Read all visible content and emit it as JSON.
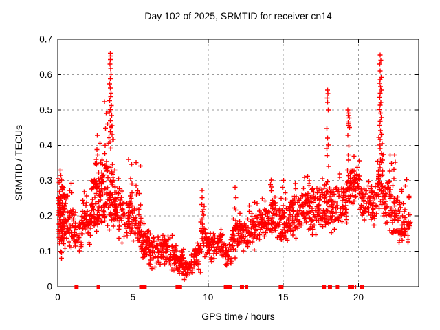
{
  "chart_data": {
    "type": "scatter",
    "title": "Day 102 of 2025, SRMTID for receiver cn14",
    "xlabel": "GPS time / hours",
    "ylabel": "SRMTID / TECUs",
    "xlim": [
      0,
      24
    ],
    "ylim": [
      0,
      0.7
    ],
    "grid": true,
    "legend_position": "none",
    "text_color": "#000000",
    "grid_color": "#9a9a9a",
    "axis_color": "#000000",
    "marker": {
      "shape": "plus",
      "color": "#ff0000",
      "size": 7,
      "stroke_width": 1.4
    },
    "zero_marker": {
      "shape": "filled-square",
      "color": "#ff0000",
      "height": 6
    },
    "x_ticks": [
      {
        "value": 0,
        "label": "0"
      },
      {
        "value": 5,
        "label": "5"
      },
      {
        "value": 10,
        "label": "10"
      },
      {
        "value": 15,
        "label": "15"
      },
      {
        "value": 20,
        "label": "20"
      }
    ],
    "y_ticks": [
      {
        "value": 0.0,
        "label": "0"
      },
      {
        "value": 0.1,
        "label": "0.1"
      },
      {
        "value": 0.2,
        "label": "0.2"
      },
      {
        "value": 0.3,
        "label": "0.3"
      },
      {
        "value": 0.4,
        "label": "0.4"
      },
      {
        "value": 0.5,
        "label": "0.5"
      },
      {
        "value": 0.6,
        "label": "0.6"
      },
      {
        "value": 0.7,
        "label": "0.7"
      }
    ],
    "feature_points": [
      [
        3.5,
        0.66
      ],
      [
        3.53,
        0.652
      ],
      [
        3.49,
        0.643
      ],
      [
        3.47,
        0.63
      ],
      [
        3.51,
        0.616
      ],
      [
        3.54,
        0.601
      ],
      [
        3.5,
        0.588
      ],
      [
        3.46,
        0.574
      ],
      [
        3.5,
        0.562
      ],
      [
        3.55,
        0.547
      ],
      [
        3.51,
        0.538
      ],
      [
        3.44,
        0.526
      ],
      [
        3.1,
        0.523
      ],
      [
        3.56,
        0.512
      ],
      [
        3.49,
        0.501
      ],
      [
        3.43,
        0.494
      ],
      [
        3.22,
        0.49
      ],
      [
        3.58,
        0.484
      ],
      [
        3.5,
        0.47
      ],
      [
        3.32,
        0.46
      ],
      [
        3.62,
        0.455
      ],
      [
        3.54,
        0.452
      ],
      [
        3.49,
        0.438
      ],
      [
        3.6,
        0.43
      ],
      [
        2.62,
        0.428
      ],
      [
        3.4,
        0.421
      ],
      [
        3.16,
        0.4
      ],
      [
        2.6,
        0.388
      ],
      [
        2.64,
        0.372
      ],
      [
        2.95,
        0.358
      ],
      [
        2.98,
        0.345
      ],
      [
        3.8,
        0.33
      ],
      [
        2.55,
        0.36
      ],
      [
        17.94,
        0.556
      ],
      [
        17.96,
        0.546
      ],
      [
        17.92,
        0.534
      ],
      [
        17.95,
        0.521
      ],
      [
        17.99,
        0.5
      ],
      [
        17.9,
        0.447
      ],
      [
        17.94,
        0.42
      ],
      [
        17.99,
        0.401
      ],
      [
        17.89,
        0.391
      ],
      [
        17.92,
        0.37
      ],
      [
        18.0,
        0.34
      ],
      [
        17.6,
        0.305
      ],
      [
        19.3,
        0.5
      ],
      [
        19.36,
        0.491
      ],
      [
        19.32,
        0.484
      ],
      [
        19.39,
        0.477
      ],
      [
        19.31,
        0.466
      ],
      [
        19.35,
        0.461
      ],
      [
        19.33,
        0.456
      ],
      [
        19.4,
        0.45
      ],
      [
        19.3,
        0.428
      ],
      [
        19.36,
        0.398
      ],
      [
        19.31,
        0.372
      ],
      [
        19.34,
        0.358
      ],
      [
        21.44,
        0.655
      ],
      [
        21.48,
        0.641
      ],
      [
        21.41,
        0.63
      ],
      [
        21.45,
        0.611
      ],
      [
        21.5,
        0.592
      ],
      [
        21.44,
        0.585
      ],
      [
        21.39,
        0.576
      ],
      [
        21.46,
        0.566
      ],
      [
        21.51,
        0.556
      ],
      [
        21.44,
        0.547
      ],
      [
        21.41,
        0.536
      ],
      [
        21.49,
        0.521
      ],
      [
        21.45,
        0.513
      ],
      [
        21.39,
        0.501
      ],
      [
        21.46,
        0.491
      ],
      [
        21.51,
        0.478
      ],
      [
        21.44,
        0.468
      ],
      [
        21.4,
        0.456
      ],
      [
        21.46,
        0.441
      ],
      [
        21.5,
        0.431
      ],
      [
        21.45,
        0.416
      ],
      [
        21.39,
        0.401
      ],
      [
        21.45,
        0.391
      ],
      [
        21.52,
        0.376
      ],
      [
        21.46,
        0.361
      ],
      [
        21.4,
        0.346
      ],
      [
        21.45,
        0.336
      ],
      [
        21.56,
        0.431
      ],
      [
        21.57,
        0.372
      ],
      [
        21.34,
        0.422
      ],
      [
        9.6,
        0.272
      ],
      [
        9.61,
        0.252
      ],
      [
        9.58,
        0.232
      ],
      [
        9.62,
        0.212
      ],
      [
        9.6,
        0.192
      ],
      [
        11.8,
        0.281
      ],
      [
        11.83,
        0.252
      ],
      [
        11.78,
        0.223
      ],
      [
        14.2,
        0.301
      ],
      [
        14.23,
        0.282
      ],
      [
        15.02,
        0.3
      ],
      [
        16.62,
        0.312
      ],
      [
        22.4,
        0.372
      ],
      [
        22.44,
        0.352
      ],
      [
        22.36,
        0.332
      ],
      [
        23.2,
        0.302
      ],
      [
        23.1,
        0.285
      ],
      [
        0.15,
        0.33
      ],
      [
        0.21,
        0.315
      ],
      [
        0.26,
        0.301
      ],
      [
        0.1,
        0.295
      ],
      [
        4.7,
        0.36
      ],
      [
        4.92,
        0.346
      ],
      [
        5.22,
        0.351
      ],
      [
        5.5,
        0.341
      ]
    ],
    "density_bands": [
      {
        "x0": 0.02,
        "x1": 0.3,
        "n": 55,
        "y_min": 0.08,
        "y_max": 0.31,
        "dense_min": 0.12,
        "dense_max": 0.26
      },
      {
        "x0": 0.3,
        "x1": 0.6,
        "n": 45,
        "y_min": 0.1,
        "y_max": 0.3,
        "dense_min": 0.14,
        "dense_max": 0.27
      },
      {
        "x0": 0.6,
        "x1": 1.1,
        "n": 40,
        "y_min": 0.11,
        "y_max": 0.3,
        "dense_min": 0.14,
        "dense_max": 0.22
      },
      {
        "x0": 1.1,
        "x1": 1.6,
        "n": 32,
        "y_min": 0.1,
        "y_max": 0.21,
        "dense_min": 0.12,
        "dense_max": 0.18
      },
      {
        "x0": 1.6,
        "x1": 2.2,
        "n": 45,
        "y_min": 0.12,
        "y_max": 0.27,
        "dense_min": 0.14,
        "dense_max": 0.22
      },
      {
        "x0": 2.2,
        "x1": 2.7,
        "n": 52,
        "y_min": 0.14,
        "y_max": 0.36,
        "dense_min": 0.17,
        "dense_max": 0.3
      },
      {
        "x0": 2.7,
        "x1": 3.15,
        "n": 55,
        "y_min": 0.15,
        "y_max": 0.42,
        "dense_min": 0.18,
        "dense_max": 0.32
      },
      {
        "x0": 3.15,
        "x1": 3.7,
        "n": 60,
        "y_min": 0.16,
        "y_max": 0.5,
        "dense_min": 0.2,
        "dense_max": 0.36
      },
      {
        "x0": 3.7,
        "x1": 4.3,
        "n": 50,
        "y_min": 0.12,
        "y_max": 0.34,
        "dense_min": 0.16,
        "dense_max": 0.28
      },
      {
        "x0": 4.3,
        "x1": 4.95,
        "n": 45,
        "y_min": 0.12,
        "y_max": 0.31,
        "dense_min": 0.15,
        "dense_max": 0.25
      },
      {
        "x0": 4.95,
        "x1": 5.55,
        "n": 45,
        "y_min": 0.1,
        "y_max": 0.3,
        "dense_min": 0.13,
        "dense_max": 0.22
      },
      {
        "x0": 5.55,
        "x1": 6.1,
        "n": 42,
        "y_min": 0.06,
        "y_max": 0.2,
        "dense_min": 0.08,
        "dense_max": 0.16
      },
      {
        "x0": 6.1,
        "x1": 6.7,
        "n": 42,
        "y_min": 0.05,
        "y_max": 0.17,
        "dense_min": 0.07,
        "dense_max": 0.14
      },
      {
        "x0": 6.7,
        "x1": 7.3,
        "n": 40,
        "y_min": 0.06,
        "y_max": 0.16,
        "dense_min": 0.08,
        "dense_max": 0.14
      },
      {
        "x0": 7.3,
        "x1": 7.9,
        "n": 40,
        "y_min": 0.04,
        "y_max": 0.15,
        "dense_min": 0.06,
        "dense_max": 0.12
      },
      {
        "x0": 7.9,
        "x1": 8.4,
        "n": 38,
        "y_min": 0.025,
        "y_max": 0.12,
        "dense_min": 0.035,
        "dense_max": 0.09
      },
      {
        "x0": 8.4,
        "x1": 9.0,
        "n": 38,
        "y_min": 0.02,
        "y_max": 0.09,
        "dense_min": 0.03,
        "dense_max": 0.07
      },
      {
        "x0": 9.0,
        "x1": 9.5,
        "n": 38,
        "y_min": 0.04,
        "y_max": 0.14,
        "dense_min": 0.06,
        "dense_max": 0.11
      },
      {
        "x0": 9.5,
        "x1": 9.85,
        "n": 25,
        "y_min": 0.08,
        "y_max": 0.24,
        "dense_min": 0.1,
        "dense_max": 0.18
      },
      {
        "x0": 9.85,
        "x1": 10.6,
        "n": 48,
        "y_min": 0.07,
        "y_max": 0.17,
        "dense_min": 0.09,
        "dense_max": 0.14
      },
      {
        "x0": 10.6,
        "x1": 11.1,
        "n": 32,
        "y_min": 0.08,
        "y_max": 0.17,
        "dense_min": 0.1,
        "dense_max": 0.15
      },
      {
        "x0": 11.1,
        "x1": 11.6,
        "n": 32,
        "y_min": 0.05,
        "y_max": 0.14,
        "dense_min": 0.06,
        "dense_max": 0.12
      },
      {
        "x0": 11.6,
        "x1": 12.1,
        "n": 38,
        "y_min": 0.08,
        "y_max": 0.24,
        "dense_min": 0.1,
        "dense_max": 0.18
      },
      {
        "x0": 12.1,
        "x1": 12.7,
        "n": 40,
        "y_min": 0.1,
        "y_max": 0.22,
        "dense_min": 0.12,
        "dense_max": 0.18
      },
      {
        "x0": 12.7,
        "x1": 13.3,
        "n": 42,
        "y_min": 0.1,
        "y_max": 0.25,
        "dense_min": 0.12,
        "dense_max": 0.2
      },
      {
        "x0": 13.3,
        "x1": 13.9,
        "n": 44,
        "y_min": 0.12,
        "y_max": 0.27,
        "dense_min": 0.14,
        "dense_max": 0.22
      },
      {
        "x0": 13.9,
        "x1": 14.5,
        "n": 48,
        "y_min": 0.12,
        "y_max": 0.29,
        "dense_min": 0.15,
        "dense_max": 0.24
      },
      {
        "x0": 14.5,
        "x1": 15.1,
        "n": 44,
        "y_min": 0.1,
        "y_max": 0.29,
        "dense_min": 0.13,
        "dense_max": 0.22
      },
      {
        "x0": 15.1,
        "x1": 15.7,
        "n": 44,
        "y_min": 0.12,
        "y_max": 0.3,
        "dense_min": 0.15,
        "dense_max": 0.25
      },
      {
        "x0": 15.7,
        "x1": 16.3,
        "n": 44,
        "y_min": 0.13,
        "y_max": 0.3,
        "dense_min": 0.16,
        "dense_max": 0.26
      },
      {
        "x0": 16.3,
        "x1": 16.9,
        "n": 48,
        "y_min": 0.15,
        "y_max": 0.31,
        "dense_min": 0.18,
        "dense_max": 0.28
      },
      {
        "x0": 16.9,
        "x1": 17.5,
        "n": 48,
        "y_min": 0.13,
        "y_max": 0.31,
        "dense_min": 0.17,
        "dense_max": 0.28
      },
      {
        "x0": 17.5,
        "x1": 18.1,
        "n": 45,
        "y_min": 0.14,
        "y_max": 0.34,
        "dense_min": 0.18,
        "dense_max": 0.3
      },
      {
        "x0": 18.1,
        "x1": 18.7,
        "n": 42,
        "y_min": 0.15,
        "y_max": 0.32,
        "dense_min": 0.18,
        "dense_max": 0.28
      },
      {
        "x0": 18.7,
        "x1": 19.25,
        "n": 38,
        "y_min": 0.18,
        "y_max": 0.32,
        "dense_min": 0.2,
        "dense_max": 0.28
      },
      {
        "x0": 19.25,
        "x1": 19.55,
        "n": 25,
        "y_min": 0.22,
        "y_max": 0.36,
        "dense_min": 0.24,
        "dense_max": 0.33
      },
      {
        "x0": 19.55,
        "x1": 20.1,
        "n": 42,
        "y_min": 0.22,
        "y_max": 0.37,
        "dense_min": 0.25,
        "dense_max": 0.33
      },
      {
        "x0": 20.1,
        "x1": 20.7,
        "n": 42,
        "y_min": 0.18,
        "y_max": 0.31,
        "dense_min": 0.2,
        "dense_max": 0.28
      },
      {
        "x0": 20.7,
        "x1": 21.2,
        "n": 42,
        "y_min": 0.17,
        "y_max": 0.3,
        "dense_min": 0.19,
        "dense_max": 0.27
      },
      {
        "x0": 21.2,
        "x1": 21.65,
        "n": 35,
        "y_min": 0.2,
        "y_max": 0.42,
        "dense_min": 0.22,
        "dense_max": 0.33
      },
      {
        "x0": 21.65,
        "x1": 22.2,
        "n": 42,
        "y_min": 0.15,
        "y_max": 0.38,
        "dense_min": 0.18,
        "dense_max": 0.3
      },
      {
        "x0": 22.2,
        "x1": 22.8,
        "n": 46,
        "y_min": 0.12,
        "y_max": 0.33,
        "dense_min": 0.15,
        "dense_max": 0.25
      },
      {
        "x0": 22.8,
        "x1": 23.45,
        "n": 42,
        "y_min": 0.11,
        "y_max": 0.28,
        "dense_min": 0.14,
        "dense_max": 0.22
      }
    ],
    "zero_time_marks": [
      [
        1.25,
        6
      ],
      [
        2.7,
        5
      ],
      [
        5.6,
        8
      ],
      [
        5.8,
        5
      ],
      [
        7.97,
        6
      ],
      [
        8.15,
        5
      ],
      [
        11.25,
        9
      ],
      [
        11.45,
        5
      ],
      [
        12.25,
        6
      ],
      [
        12.55,
        5
      ],
      [
        14.85,
        7
      ],
      [
        17.7,
        6
      ],
      [
        18.1,
        6
      ],
      [
        18.6,
        5
      ],
      [
        19.5,
        9
      ],
      [
        19.8,
        2
      ],
      [
        20.17,
        3
      ],
      [
        20.3,
        2
      ]
    ]
  }
}
